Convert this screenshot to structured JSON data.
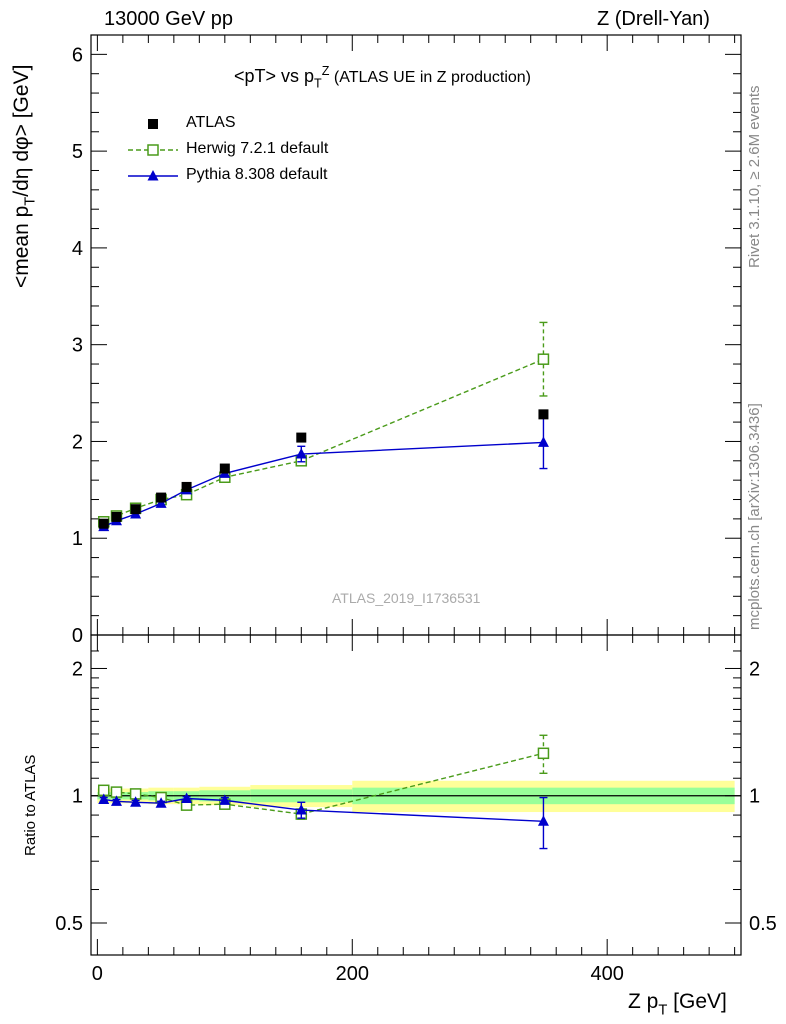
{
  "header": {
    "left": "13000 GeV pp",
    "right": "Z (Drell-Yan)"
  },
  "side": {
    "rivet": "Rivet 3.1.10, ≥ 2.6M events",
    "mcplots": "mcplots.cern.ch [arXiv:1306.3436]"
  },
  "chart_data": [
    {
      "type": "line",
      "title": "<pT> vs pTZ (ATLAS UE in Z production)",
      "title_main": "<pT> vs p",
      "title_sup": "Z",
      "title_sub": "T",
      "title_rest": " (ATLAS UE in Z production)",
      "ylabel": "<mean pT/dη dφ> [GeV]",
      "ylabel_a": "<mean p",
      "ylabel_sub": "T",
      "ylabel_b": "/dη dφ> [GeV]",
      "xlim": [
        -5,
        505
      ],
      "ylim": [
        0,
        6.2
      ],
      "yticks": [
        0,
        1,
        2,
        3,
        4,
        5,
        6
      ],
      "ytick_labels": [
        "0",
        "1",
        "2",
        "3",
        "4",
        "5",
        "6"
      ],
      "analysis_id": "ATLAS_2019_I1736531",
      "series": [
        {
          "name": "ATLAS",
          "x": [
            5,
            15,
            30,
            50,
            70,
            100,
            160,
            350
          ],
          "y": [
            1.15,
            1.22,
            1.3,
            1.42,
            1.53,
            1.72,
            2.04,
            2.28
          ],
          "color": "#000000"
        },
        {
          "name": "Herwig 7.2.1 default",
          "x": [
            5,
            15,
            30,
            50,
            70,
            100,
            160,
            350
          ],
          "y": [
            1.17,
            1.23,
            1.31,
            1.4,
            1.45,
            1.63,
            1.8,
            2.85
          ],
          "err": [
            0.02,
            0.02,
            0.02,
            0.02,
            0.02,
            0.03,
            0.05,
            0.38
          ],
          "color": "#4a9b1a"
        },
        {
          "name": "Pythia 8.308 default",
          "x": [
            5,
            15,
            30,
            50,
            70,
            100,
            160,
            350
          ],
          "y": [
            1.12,
            1.18,
            1.25,
            1.36,
            1.5,
            1.67,
            1.87,
            1.99
          ],
          "err": [
            0.02,
            0.02,
            0.02,
            0.02,
            0.02,
            0.03,
            0.08,
            0.27
          ],
          "color": "#0000cc"
        }
      ]
    },
    {
      "type": "line",
      "title": "Ratio to ATLAS",
      "ylabel": "Ratio to ATLAS",
      "xlabel": "Z pT [GeV]",
      "xlabel_a": "Z p",
      "xlabel_sub": "T",
      "xlabel_b": " [GeV]",
      "xlim": [
        -5,
        505
      ],
      "ylim": [
        0.42,
        2.4
      ],
      "yscale": "log",
      "xticks": [
        0,
        200,
        400
      ],
      "xtick_labels": [
        "0",
        "200",
        "400"
      ],
      "yticks": [
        0.5,
        1,
        2
      ],
      "ytick_labels": [
        "0.5",
        "1",
        "2"
      ],
      "bands": [
        {
          "x0": 0,
          "x1": 10,
          "inner": [
            0.98,
            1.02
          ],
          "outer": [
            0.96,
            1.04
          ]
        },
        {
          "x0": 10,
          "x1": 20,
          "inner": [
            0.98,
            1.02
          ],
          "outer": [
            0.96,
            1.04
          ]
        },
        {
          "x0": 20,
          "x1": 40,
          "inner": [
            0.98,
            1.02
          ],
          "outer": [
            0.96,
            1.04
          ]
        },
        {
          "x0": 40,
          "x1": 60,
          "inner": [
            0.975,
            1.025
          ],
          "outer": [
            0.955,
            1.045
          ]
        },
        {
          "x0": 60,
          "x1": 80,
          "inner": [
            0.975,
            1.025
          ],
          "outer": [
            0.955,
            1.045
          ]
        },
        {
          "x0": 80,
          "x1": 120,
          "inner": [
            0.97,
            1.03
          ],
          "outer": [
            0.95,
            1.05
          ]
        },
        {
          "x0": 120,
          "x1": 200,
          "inner": [
            0.965,
            1.035
          ],
          "outer": [
            0.94,
            1.06
          ]
        },
        {
          "x0": 200,
          "x1": 500,
          "inner": [
            0.955,
            1.045
          ],
          "outer": [
            0.915,
            1.085
          ]
        }
      ],
      "series": [
        {
          "name": "Herwig 7.2.1 default",
          "x": [
            5,
            15,
            30,
            50,
            70,
            100,
            160,
            350
          ],
          "y": [
            1.03,
            1.02,
            1.01,
            0.99,
            0.95,
            0.955,
            0.905,
            1.26
          ],
          "err": [
            0.01,
            0.01,
            0.01,
            0.01,
            0.01,
            0.015,
            0.025,
            0.13
          ],
          "color": "#4a9b1a"
        },
        {
          "name": "Pythia 8.308 default",
          "x": [
            5,
            15,
            30,
            50,
            70,
            100,
            160,
            350
          ],
          "y": [
            0.98,
            0.97,
            0.965,
            0.96,
            0.985,
            0.975,
            0.925,
            0.87
          ],
          "err": [
            0.01,
            0.01,
            0.01,
            0.01,
            0.01,
            0.015,
            0.04,
            0.12
          ],
          "color": "#0000cc"
        }
      ]
    }
  ]
}
